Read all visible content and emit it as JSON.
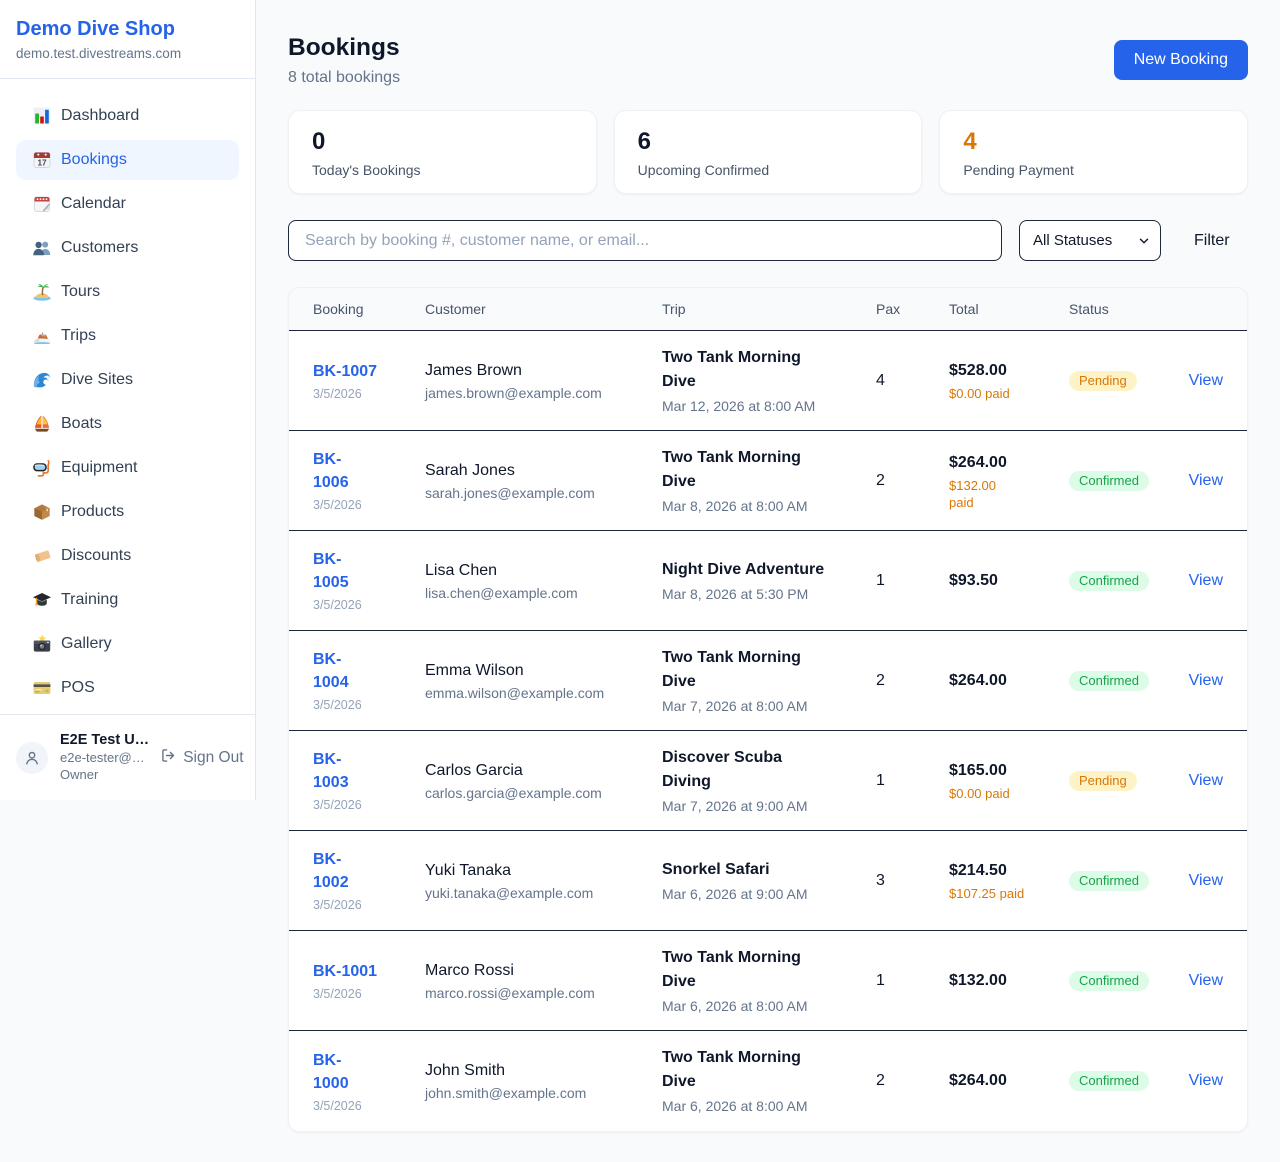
{
  "brand": {
    "name": "Demo Dive Shop",
    "domain": "demo.test.divestreams.com"
  },
  "sidebar": {
    "items": [
      {
        "label": "Dashboard",
        "icon": "bar-chart-icon",
        "active": false
      },
      {
        "label": "Bookings",
        "icon": "calendar-date-icon",
        "active": true
      },
      {
        "label": "Calendar",
        "icon": "tear-calendar-icon",
        "active": false
      },
      {
        "label": "Customers",
        "icon": "people-icon",
        "active": false
      },
      {
        "label": "Tours",
        "icon": "island-icon",
        "active": false
      },
      {
        "label": "Trips",
        "icon": "speedboat-icon",
        "active": false
      },
      {
        "label": "Dive Sites",
        "icon": "wave-icon",
        "active": false
      },
      {
        "label": "Boats",
        "icon": "sailboat-icon",
        "active": false
      },
      {
        "label": "Equipment",
        "icon": "diving-mask-icon",
        "active": false
      },
      {
        "label": "Products",
        "icon": "package-icon",
        "active": false
      },
      {
        "label": "Discounts",
        "icon": "tag-icon",
        "active": false
      },
      {
        "label": "Training",
        "icon": "graduation-cap-icon",
        "active": false
      },
      {
        "label": "Gallery",
        "icon": "camera-icon",
        "active": false
      },
      {
        "label": "POS",
        "icon": "credit-card-icon",
        "active": false
      }
    ]
  },
  "user": {
    "name": "E2E Test U…",
    "email": "e2e-tester@…",
    "role": "Owner",
    "signout_label": "Sign Out"
  },
  "header": {
    "title": "Bookings",
    "subtitle": "8 total bookings",
    "new_booking_label": "New Booking"
  },
  "stats": {
    "cards": [
      {
        "value": "0",
        "label": "Today's Bookings",
        "accent": false
      },
      {
        "value": "6",
        "label": "Upcoming Confirmed",
        "accent": false
      },
      {
        "value": "4",
        "label": "Pending Payment",
        "accent": true
      }
    ]
  },
  "filters": {
    "search_placeholder": "Search by booking #, customer name, or email...",
    "status_selected": "All Statuses",
    "filter_label": "Filter"
  },
  "table": {
    "columns": [
      "Booking",
      "Customer",
      "Trip",
      "Pax",
      "Total",
      "Status"
    ],
    "rows": [
      {
        "id": "BK-1007",
        "date": "3/5/2026",
        "customer": "James Brown",
        "email": "james.brown@example.com",
        "trip": "Two Tank Morning\nDive",
        "trip_date": "Mar 12, 2026 at 8:00 AM",
        "pax": "4",
        "total": "$528.00",
        "paid": "$0.00 paid",
        "status": "Pending",
        "action": "View"
      },
      {
        "id": "BK-\n1006",
        "date": "3/5/2026",
        "customer": "Sarah Jones",
        "email": "sarah.jones@example.com",
        "trip": "Two Tank Morning\nDive",
        "trip_date": "Mar 8, 2026 at 8:00 AM",
        "pax": "2",
        "total": "$264.00",
        "paid": "$132.00\npaid",
        "status": "Confirmed",
        "action": "View"
      },
      {
        "id": "BK-\n1005",
        "date": "3/5/2026",
        "customer": "Lisa Chen",
        "email": "lisa.chen@example.com",
        "trip": "Night Dive Adventure",
        "trip_date": "Mar 8, 2026 at 5:30 PM",
        "pax": "1",
        "total": "$93.50",
        "paid": "",
        "status": "Confirmed",
        "action": "View"
      },
      {
        "id": "BK-\n1004",
        "date": "3/5/2026",
        "customer": "Emma Wilson",
        "email": "emma.wilson@example.com",
        "trip": "Two Tank Morning\nDive",
        "trip_date": "Mar 7, 2026 at 8:00 AM",
        "pax": "2",
        "total": "$264.00",
        "paid": "",
        "status": "Confirmed",
        "action": "View"
      },
      {
        "id": "BK-\n1003",
        "date": "3/5/2026",
        "customer": "Carlos Garcia",
        "email": "carlos.garcia@example.com",
        "trip": "Discover Scuba\nDiving",
        "trip_date": "Mar 7, 2026 at 9:00 AM",
        "pax": "1",
        "total": "$165.00",
        "paid": "$0.00 paid",
        "status": "Pending",
        "action": "View"
      },
      {
        "id": "BK-\n1002",
        "date": "3/5/2026",
        "customer": "Yuki Tanaka",
        "email": "yuki.tanaka@example.com",
        "trip": "Snorkel Safari",
        "trip_date": "Mar 6, 2026 at 9:00 AM",
        "pax": "3",
        "total": "$214.50",
        "paid": "$107.25 paid",
        "status": "Confirmed",
        "action": "View"
      },
      {
        "id": "BK-1001",
        "date": "3/5/2026",
        "customer": "Marco Rossi",
        "email": "marco.rossi@example.com",
        "trip": "Two Tank Morning\nDive",
        "trip_date": "Mar 6, 2026 at 8:00 AM",
        "pax": "1",
        "total": "$132.00",
        "paid": "",
        "status": "Confirmed",
        "action": "View"
      },
      {
        "id": "BK-\n1000",
        "date": "3/5/2026",
        "customer": "John Smith",
        "email": "john.smith@example.com",
        "trip": "Two Tank Morning\nDive",
        "trip_date": "Mar 6, 2026 at 8:00 AM",
        "pax": "2",
        "total": "$264.00",
        "paid": "",
        "status": "Confirmed",
        "action": "View"
      }
    ]
  },
  "colors": {
    "accent_blue": "#2563eb",
    "accent_orange": "#d97706",
    "pending_bg": "#fef3c7",
    "pending_text": "#d97706",
    "confirmed_bg": "#dcfce7",
    "confirmed_text": "#16a34a",
    "page_bg": "#f8fafc",
    "border_dark": "#1e293b",
    "border_light": "#e2e8f0"
  }
}
